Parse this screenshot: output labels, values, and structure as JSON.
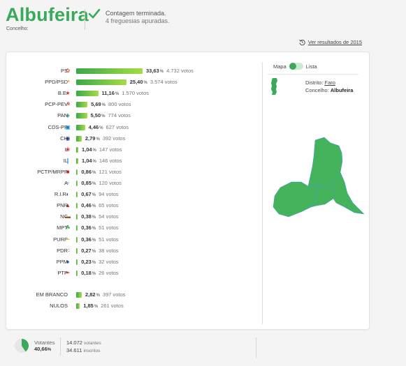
{
  "header": {
    "title": "Albufeira",
    "subtitle": "Concelho:",
    "status_line1": "Contagem terminada.",
    "status_line2": "4 freguesias apuradas.",
    "prev_results_link": "Ver resultados de 2015"
  },
  "colors": {
    "accent": "#3aaa5a",
    "bar_start": "#3aa84a",
    "bar_end": "#a6dc45"
  },
  "results": [
    {
      "party": "PS",
      "pct": "33,63",
      "votes": "4.732 votos",
      "share": 33.63,
      "icon": "rose-icon"
    },
    {
      "party": "PPD/PSD",
      "pct": "25,40",
      "votes": "3.574 votos",
      "share": 25.4,
      "icon": "arrow-icon"
    },
    {
      "party": "B.E.",
      "pct": "11,16",
      "votes": "1.570 votos",
      "share": 11.16,
      "icon": "star-icon"
    },
    {
      "party": "PCP-PEV",
      "pct": "5,69",
      "votes": "800 votos",
      "share": 5.69,
      "icon": "sickle-icon"
    },
    {
      "party": "PAN",
      "pct": "5,50",
      "votes": "774 votos",
      "share": 5.5,
      "icon": "pan-icon"
    },
    {
      "party": "CDS-PP",
      "pct": "4,46",
      "votes": "627 votos",
      "share": 4.46,
      "icon": "cds-icon"
    },
    {
      "party": "CH",
      "pct": "2,79",
      "votes": "392 votos",
      "share": 2.79,
      "icon": "chega-icon"
    },
    {
      "party": "L",
      "pct": "1,04",
      "votes": "147 votos",
      "share": 1.04,
      "icon": "livre-icon"
    },
    {
      "party": "IL",
      "pct": "1,04",
      "votes": "146 votos",
      "share": 1.04,
      "icon": "il-icon"
    },
    {
      "party": "PCTP/MRPP",
      "pct": "0,86",
      "votes": "121 votos",
      "share": 0.86,
      "icon": "mrpp-icon"
    },
    {
      "party": "A",
      "pct": "0,85",
      "votes": "120 votos",
      "share": 0.85,
      "icon": "alianca-icon"
    },
    {
      "party": "R.I.R.",
      "pct": "0,67",
      "votes": "94 votos",
      "share": 0.67,
      "icon": "rir-icon"
    },
    {
      "party": "PNR",
      "pct": "0,46",
      "votes": "65 votos",
      "share": 0.46,
      "icon": "pnr-icon"
    },
    {
      "party": "NC",
      "pct": "0,38",
      "votes": "54 votos",
      "share": 0.38,
      "icon": "nc-icon"
    },
    {
      "party": "MPT",
      "pct": "0,36",
      "votes": "51 votos",
      "share": 0.36,
      "icon": "mpt-icon"
    },
    {
      "party": "PURP",
      "pct": "0,36",
      "votes": "51 votos",
      "share": 0.36,
      "icon": "purp-icon"
    },
    {
      "party": "PDR",
      "pct": "0,27",
      "votes": "38 votos",
      "share": 0.27,
      "icon": "pdr-icon"
    },
    {
      "party": "PPM",
      "pct": "0,23",
      "votes": "32 votos",
      "share": 0.23,
      "icon": "ppm-icon"
    },
    {
      "party": "PTP",
      "pct": "0,18",
      "votes": "26 votos",
      "share": 0.18,
      "icon": "ptp-icon"
    }
  ],
  "blank_null": [
    {
      "party": "EM BRANCO",
      "pct": "2,82",
      "votes": "397 votos",
      "share": 2.82
    },
    {
      "party": "NULOS",
      "pct": "1,85",
      "votes": "261 votos",
      "share": 1.85
    }
  ],
  "map_panel": {
    "toggle_left": "Mapa",
    "toggle_right": "Lista",
    "district_label": "Distrito:",
    "district_value": "Faro",
    "municipality_label": "Concelho:",
    "municipality_value": "Albufeira"
  },
  "footer": {
    "turnout_label": "Votantes",
    "turnout_pct": "40,66",
    "turnout_share": 40.66,
    "voters_count": "14.072",
    "voters_unit": "votantes",
    "registered_count": "34.611",
    "registered_unit": "inscritos"
  }
}
